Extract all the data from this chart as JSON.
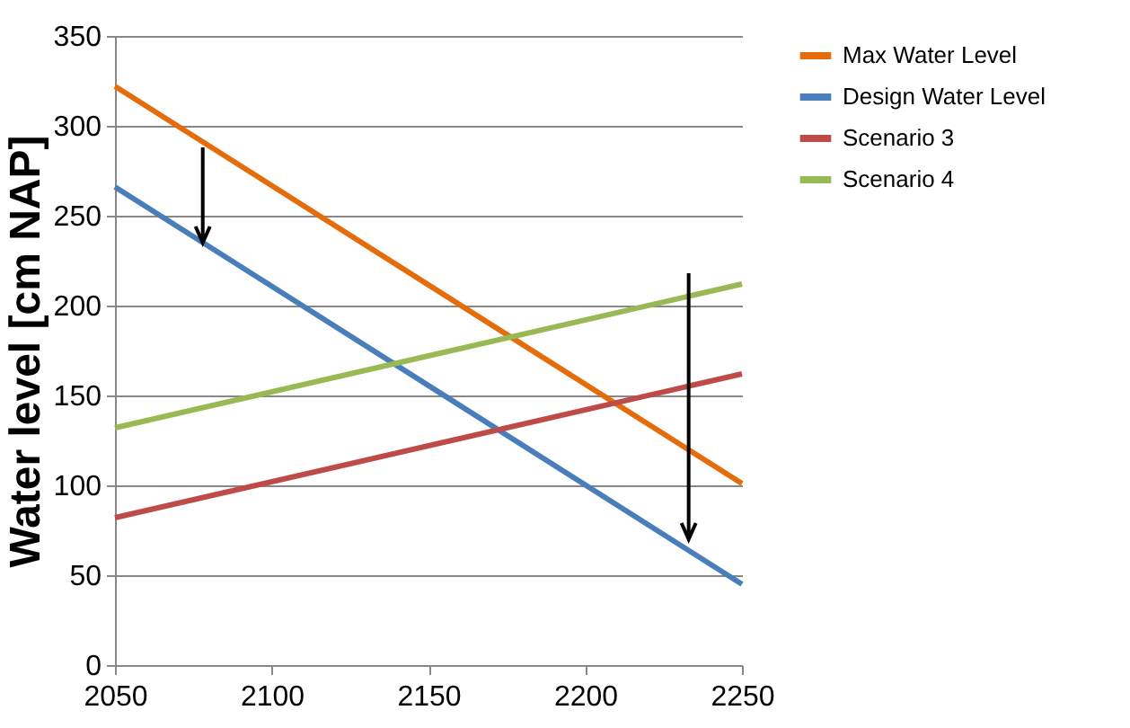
{
  "chart_data": {
    "type": "line",
    "ylabel": "Water level [cm NAP]",
    "x": [
      2050,
      2250
    ],
    "xlim": [
      2050,
      2250
    ],
    "xticks": [
      2050,
      2100,
      2150,
      2200,
      2250
    ],
    "ylim": [
      0,
      350
    ],
    "yticks": [
      0,
      50,
      100,
      150,
      200,
      250,
      300,
      350
    ],
    "grid": "y",
    "legend": "right",
    "marker": "none",
    "line_style": "solid",
    "series": [
      {
        "name": "Max Water Level",
        "color": "#e46c0a",
        "values": [
          322,
          101
        ]
      },
      {
        "name": "Design Water Level",
        "color": "#4a7ebb",
        "values": [
          266,
          45
        ]
      },
      {
        "name": "Scenario 3",
        "color": "#be4b48",
        "values": [
          82,
          162
        ]
      },
      {
        "name": "Scenario 4",
        "color": "#98b954",
        "values": [
          132,
          212
        ]
      }
    ]
  }
}
